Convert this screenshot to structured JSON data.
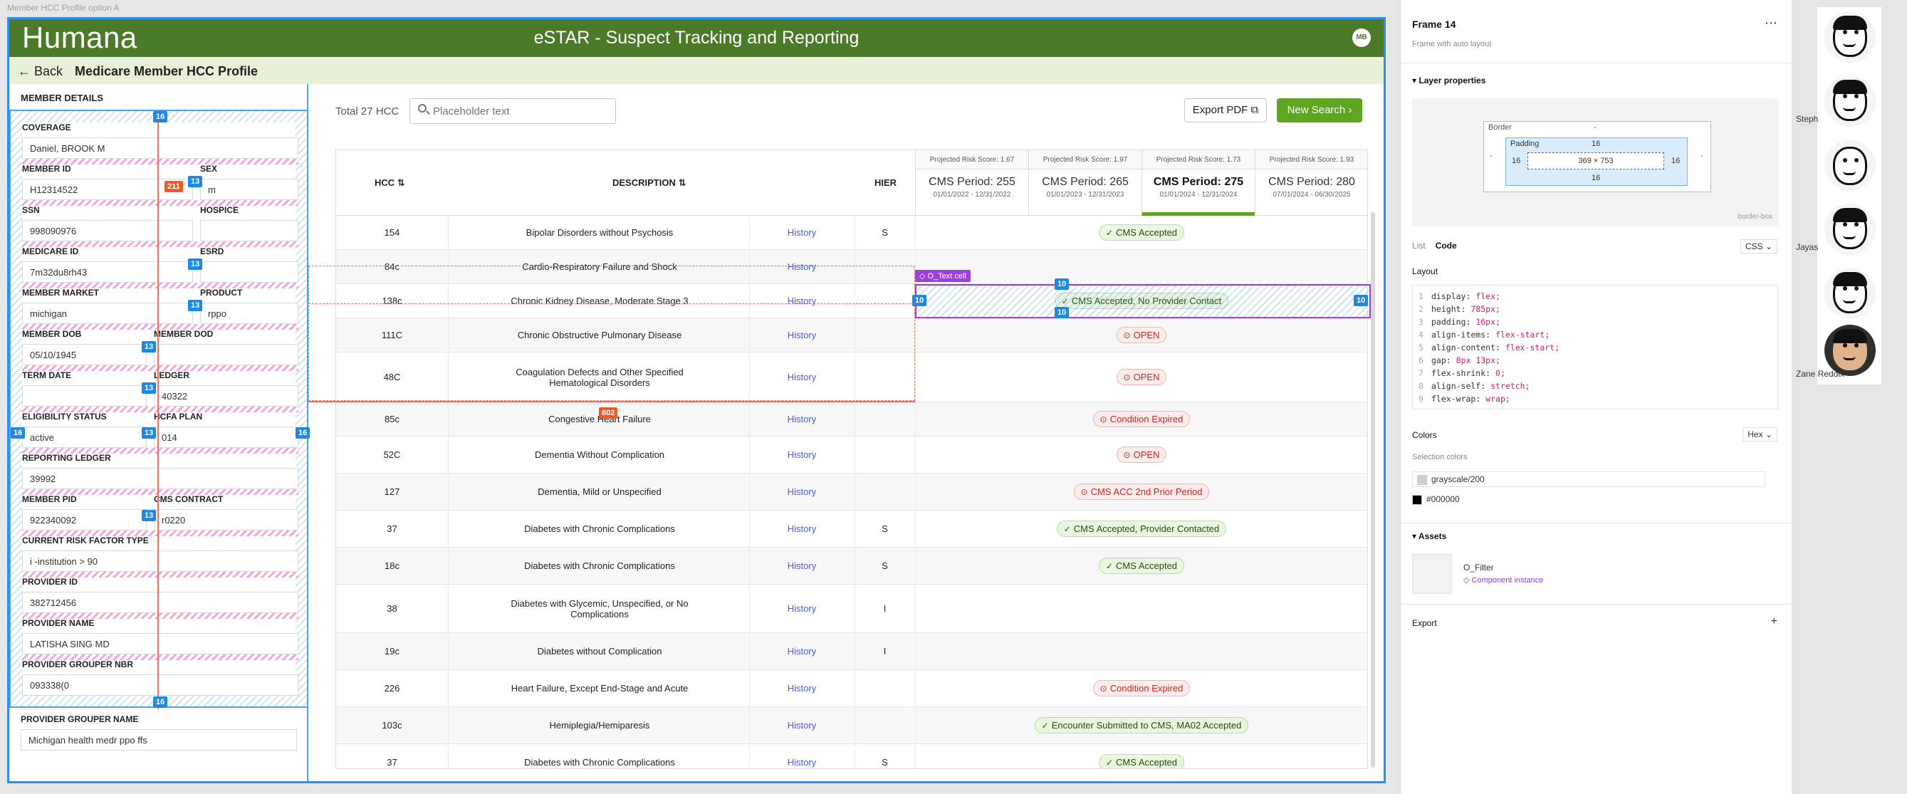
{
  "frame_caption": "Member HCC Profile option A",
  "header": {
    "logo": "Humana",
    "title": "eSTAR - Suspect Tracking and Reporting",
    "user_initials": "MB"
  },
  "subheader": {
    "back_label": "← Back",
    "page_title": "Medicare Member HCC Profile"
  },
  "member_details": {
    "heading": "MEMBER DETAILS",
    "coverage": {
      "label": "COVERAGE",
      "value": "Daniel, BROOK M"
    },
    "member_id": {
      "label": "MEMBER ID",
      "value": "H12314522"
    },
    "sex": {
      "label": "SEX",
      "value": "m"
    },
    "ssn": {
      "label": "SSN",
      "value": "998090976"
    },
    "hospice": {
      "label": "HOSPICE",
      "value": ""
    },
    "medicare_id": {
      "label": "MEDICARE ID",
      "value": "7m32du8rh43"
    },
    "esrd": {
      "label": "ESRD",
      "value": ""
    },
    "member_market": {
      "label": "MEMBER MARKET",
      "value": "michigan"
    },
    "product": {
      "label": "PRODUCT",
      "value": "rppo"
    },
    "member_dob": {
      "label": "MEMBER DOB",
      "value": "05/10/1945"
    },
    "member_dod": {
      "label": "MEMBER DOD",
      "value": ""
    },
    "term_date": {
      "label": "TERM DATE",
      "value": ""
    },
    "ledger": {
      "label": "LEDGER",
      "value": "40322"
    },
    "eligibility_status": {
      "label": "ELIGIBILITY STATUS",
      "value": "active"
    },
    "hcfa_plan": {
      "label": "HCFA PLAN",
      "value": "014"
    },
    "reporting_ledger": {
      "label": "REPORTING LEDGER",
      "value": "39992"
    },
    "member_pid": {
      "label": "MEMBER PID",
      "value": "922340092"
    },
    "cms_contract": {
      "label": "CMS CONTRACT",
      "value": "r0220"
    },
    "risk_factor_type": {
      "label": "CURRENT RISK FACTOR TYPE",
      "value": "i -institution > 90"
    },
    "provider_id": {
      "label": "PROVIDER ID",
      "value": "382712456"
    },
    "provider_name": {
      "label": "PROVIDER NAME",
      "value": "LATISHA SING MD"
    },
    "provider_grouper_nbr": {
      "label": "PROVIDER GROUPER NBR",
      "value": "093338(0"
    },
    "provider_grouper_name": {
      "label": "PROVIDER GROUPER NAME",
      "value": "Michigan health medr ppo ffs"
    }
  },
  "spacing_badges": {
    "b16": "16",
    "b13": "13",
    "b211": "211",
    "b802": "802",
    "b10": "10"
  },
  "toolbar": {
    "total": "Total 27 HCC",
    "search_placeholder": "Placeholder text",
    "export_label": "Export PDF ⧉",
    "new_search_label": "New Search ›"
  },
  "table": {
    "headers": {
      "hcc": "HCC ⇅",
      "description": "DESCRIPTION ⇅",
      "hier": "HIER"
    },
    "periods": [
      {
        "risk": "Projected Risk Score: 1.67",
        "name": "CMS Period: 255",
        "range": "01/01/2022 - 12/31/2022"
      },
      {
        "risk": "Projected Risk Score: 1.97",
        "name": "CMS Period: 265",
        "range": "01/01/2023 - 12/31/2023"
      },
      {
        "risk": "Projected Risk Score: 1.73",
        "name": "CMS Period: 275",
        "range": "01/01/2024 - 12/31/2024"
      },
      {
        "risk": "Projected Risk Score: 1.93",
        "name": "CMS Period: 280",
        "range": "07/01/2024 - 06/30/2025"
      }
    ],
    "rows": [
      {
        "hcc": "154",
        "desc": "Bipolar Disorders without Psychosis",
        "link": "History",
        "hier": "S",
        "status": "CMS Accepted",
        "kind": "ok"
      },
      {
        "hcc": "84c",
        "desc": "Cardio-Respiratory Failure and Shock",
        "link": "History",
        "hier": "",
        "status": "",
        "kind": ""
      },
      {
        "hcc": "138c",
        "desc": "Chronic Kidney Disease, Moderate Stage 3",
        "link": "History",
        "hier": "",
        "status": "CMS Accepted, No Provider Contact",
        "kind": "ok"
      },
      {
        "hcc": "111C",
        "desc": "Chronic Obstructive Pulmonary Disease",
        "link": "History",
        "hier": "",
        "status": "OPEN",
        "kind": "bad"
      },
      {
        "hcc": "48C",
        "desc": "Coagulation Defects and Other Specified Hematological Disorders",
        "link": "History",
        "hier": "",
        "status": "OPEN",
        "kind": "bad"
      },
      {
        "hcc": "85c",
        "desc": "Congestive Heart Failure",
        "link": "History",
        "hier": "",
        "status": "Condition Expired",
        "kind": "bad"
      },
      {
        "hcc": "52C",
        "desc": "Dementia Without Complication",
        "link": "History",
        "hier": "",
        "status": "OPEN",
        "kind": "bad"
      },
      {
        "hcc": "127",
        "desc": "Dementia, Mild or Unspecified",
        "link": "History",
        "hier": "",
        "status": "CMS ACC 2nd Prior Period",
        "kind": "bad"
      },
      {
        "hcc": "37",
        "desc": "Diabetes with Chronic Complications",
        "link": "History",
        "hier": "S",
        "status": "CMS Accepted, Provider Contacted",
        "kind": "ok"
      },
      {
        "hcc": "18c",
        "desc": "Diabetes with Chronic Complications",
        "link": "History",
        "hier": "S",
        "status": "CMS Accepted",
        "kind": "ok"
      },
      {
        "hcc": "38",
        "desc": "Diabetes with Glycemic, Unspecified, or No Complications",
        "link": "History",
        "hier": "I",
        "status": "",
        "kind": ""
      },
      {
        "hcc": "19c",
        "desc": "Diabetes without Complication",
        "link": "History",
        "hier": "I",
        "status": "",
        "kind": ""
      },
      {
        "hcc": "226",
        "desc": "Heart Failure, Except End-Stage and Acute",
        "link": "History",
        "hier": "",
        "status": "Condition Expired",
        "kind": "bad"
      },
      {
        "hcc": "103c",
        "desc": "Hemiplegia/Hemiparesis",
        "link": "History",
        "hier": "",
        "status": "Encounter Submitted to CMS, MA02 Accepted",
        "kind": "ok"
      },
      {
        "hcc": "37",
        "desc": "Diabetes with Chronic Complications",
        "link": "History",
        "hier": "S",
        "status": "CMS Accepted",
        "kind": "ok"
      }
    ]
  },
  "overlay": {
    "text_cell_tag": "◇ O_Text cell"
  },
  "inspector": {
    "frame_name": "Frame 14",
    "frame_sub": "Frame with auto layout",
    "more": "⋯",
    "layer_properties": "▾ Layer properties",
    "border_label": "Border",
    "padding_label": "Padding",
    "size": "369 × 753",
    "pad_top": "16",
    "pad_bottom": "16",
    "pad_left": "16",
    "pad_right": "16",
    "border_dash": "-",
    "box_mode": "border-box",
    "tab_list": "List",
    "tab_code": "Code",
    "lang": "CSS ⌄",
    "layout_heading": "Layout",
    "code": [
      {
        "n": "1",
        "k": "display: ",
        "v": "flex;"
      },
      {
        "n": "2",
        "k": "height: ",
        "v": "785px;"
      },
      {
        "n": "3",
        "k": "padding: ",
        "v": "16px;"
      },
      {
        "n": "4",
        "k": "align-items: ",
        "v": "flex-start;"
      },
      {
        "n": "5",
        "k": "align-content: ",
        "v": "flex-start;"
      },
      {
        "n": "6",
        "k": "gap: ",
        "v": "8px 13px;"
      },
      {
        "n": "7",
        "k": "flex-shrink: ",
        "v": "0;"
      },
      {
        "n": "8",
        "k": "align-self: ",
        "v": "stretch;"
      },
      {
        "n": "9",
        "k": "flex-wrap: ",
        "v": "wrap;"
      }
    ],
    "colors_heading": "Colors",
    "color_format": "Hex ⌄",
    "selection_colors": "Selection colors",
    "color1": "grayscale/200",
    "color2": "#000000",
    "assets_heading": "▾ Assets",
    "asset_name": "O_Filter",
    "asset_type": "◇ Component instance",
    "export_heading": "Export",
    "export_add": "+"
  },
  "participants": {
    "p1": "Steph",
    "p2": "Jayas",
    "p3": "Zane Reddix"
  },
  "colors": {
    "header_green": "#4b7a29",
    "subheader_green": "#e8f1d8",
    "accent_green": "#5ea622",
    "link_blue": "#4d5bd6",
    "selection_blue": "#2a8ff0",
    "error_red": "#c62828"
  }
}
